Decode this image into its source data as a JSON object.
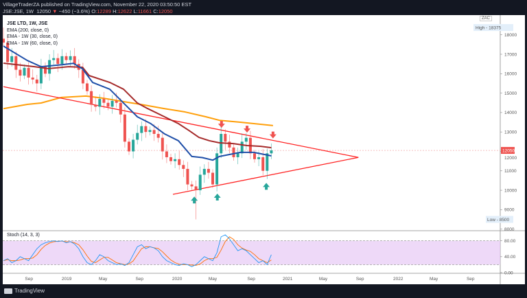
{
  "header": {
    "published": "VillageTraderZA published on TradingView.com, November 22, 2020 03:50:50 EST",
    "symbol": "JSE:JSE, 1W",
    "last": "12050",
    "change": "−450 (−3.6%)",
    "o_label": "O:",
    "o": "12289",
    "h_label": "H:",
    "h": "12622",
    "l_label": "L:",
    "l": "11661",
    "c_label": "C:",
    "c": "12050"
  },
  "legend": {
    "title": "JSE LTD, 1W, JSE",
    "ema200": "EMA (200, close, 0)",
    "ema30": "EMA - 1W (30, close, 0)",
    "ema60": "EMA - 1W (60, close, 0)",
    "stoch": "Stoch (14, 3, 3)"
  },
  "currency": "ZAC",
  "footer": {
    "brand": "TradingView"
  },
  "colors": {
    "up": "#26a69a",
    "down": "#ef5350",
    "ema30": "#1e4ea8",
    "ema60": "#a52a2a",
    "ema200": "#ff9f0a",
    "trend": "#ff2020",
    "stochK": "#2196f3",
    "stochD": "#ff6d00",
    "band": "#e7c9f5"
  },
  "chart_data": {
    "type": "candlestick",
    "interval": "2 weeks per point (index)",
    "ylim": [
      8000,
      18400
    ],
    "y_ticks": [
      8000,
      9000,
      10000,
      11000,
      12000,
      13000,
      14000,
      15000,
      16000,
      17000,
      18000
    ],
    "high_label": "High - 18375",
    "low_label": "Low - 8500",
    "last_price": 12050,
    "last_price_label": "12050",
    "closes": [
      17600,
      16600,
      16900,
      16200,
      15900,
      16300,
      15800,
      15700,
      15500,
      16400,
      16000,
      16700,
      16800,
      16500,
      16900,
      16700,
      16900,
      16500,
      16200,
      15500,
      15100,
      14400,
      14300,
      14700,
      14500,
      14300,
      14600,
      14500,
      13900,
      12500,
      12000,
      12600,
      12950,
      13300,
      13000,
      13100,
      12900,
      12700,
      12000,
      11700,
      11500,
      11600,
      11300,
      11100,
      10300,
      10200,
      10000,
      10800,
      11100,
      10900,
      10300,
      11900,
      12900,
      12500,
      12200,
      11700,
      11900,
      12500,
      12700,
      11900,
      11600,
      11700,
      11000,
      11900,
      12050
    ],
    "ema30": [
      [
        0,
        17420
      ],
      [
        5.7,
        16680
      ],
      [
        9,
        16360
      ],
      [
        14,
        16460
      ],
      [
        16.7,
        16530
      ],
      [
        18.9,
        16250
      ],
      [
        21.3,
        15550
      ],
      [
        25.4,
        15200
      ],
      [
        28.7,
        14490
      ],
      [
        32,
        13780
      ],
      [
        35.2,
        13430
      ],
      [
        38.5,
        12900
      ],
      [
        41.8,
        12550
      ],
      [
        45,
        11740
      ],
      [
        47.5,
        11680
      ],
      [
        50,
        11550
      ],
      [
        51.6,
        11740
      ],
      [
        54,
        11840
      ],
      [
        56.6,
        11950
      ],
      [
        59.8,
        11950
      ],
      [
        64,
        11770
      ]
    ],
    "ema60": [
      [
        0,
        16540
      ],
      [
        7.4,
        16360
      ],
      [
        10.7,
        16260
      ],
      [
        15.6,
        16360
      ],
      [
        18.9,
        16330
      ],
      [
        20.5,
        15900
      ],
      [
        25.4,
        15550
      ],
      [
        28.7,
        15200
      ],
      [
        32,
        14490
      ],
      [
        34.4,
        14210
      ],
      [
        38.5,
        13780
      ],
      [
        41.8,
        13430
      ],
      [
        44.3,
        13080
      ],
      [
        46.7,
        12720
      ],
      [
        49.2,
        12550
      ],
      [
        51.6,
        12440
      ],
      [
        54.9,
        12400
      ],
      [
        58.2,
        12300
      ],
      [
        61.5,
        12260
      ],
      [
        64,
        12190
      ]
    ],
    "ema200": [
      [
        0,
        14200
      ],
      [
        5.7,
        14420
      ],
      [
        9,
        14490
      ],
      [
        13.9,
        14780
      ],
      [
        19.7,
        14850
      ],
      [
        23.8,
        14740
      ],
      [
        28.7,
        14560
      ],
      [
        33.6,
        14390
      ],
      [
        38.5,
        14200
      ],
      [
        43.4,
        14030
      ],
      [
        48.4,
        13780
      ],
      [
        51.6,
        13600
      ],
      [
        56.6,
        13500
      ],
      [
        64.4,
        13330
      ]
    ],
    "trendlines": [
      [
        [
          0,
          15330
        ],
        [
          84.8,
          11690
        ]
      ],
      [
        [
          40.5,
          9790
        ],
        [
          84.8,
          11690
        ]
      ]
    ],
    "sell_arrows": [
      [
        52.1,
        13250
      ],
      [
        58.2,
        13000
      ],
      [
        64.4,
        12700
      ]
    ],
    "buy_arrows": [
      [
        45.6,
        9500
      ],
      [
        51.1,
        9650
      ],
      [
        62.8,
        10200
      ]
    ],
    "x_labels": [
      [
        "Sep",
        6.1
      ],
      [
        "2019",
        15.1
      ],
      [
        "May",
        23.8
      ],
      [
        "Sep",
        32.5
      ],
      [
        "2020",
        41.5
      ],
      [
        "May",
        50
      ],
      [
        "Sep",
        59.2
      ],
      [
        "2021",
        67.9
      ],
      [
        "May",
        76.4
      ],
      [
        "Sep",
        85.2
      ],
      [
        "2022",
        94.3
      ],
      [
        "May",
        102.8
      ],
      [
        "Sep",
        111.6
      ]
    ],
    "stoch": {
      "k": [
        30,
        35,
        25,
        30,
        40,
        35,
        30,
        45,
        60,
        70,
        75,
        78,
        80,
        78,
        80,
        75,
        78,
        72,
        60,
        40,
        25,
        20,
        30,
        45,
        40,
        30,
        25,
        20,
        22,
        18,
        25,
        45,
        65,
        70,
        60,
        65,
        62,
        55,
        40,
        30,
        25,
        20,
        18,
        22,
        20,
        15,
        20,
        30,
        40,
        35,
        30,
        50,
        90,
        95,
        85,
        70,
        55,
        60,
        55,
        45,
        35,
        25,
        30,
        20,
        45
      ],
      "upper": 80,
      "lower": 20,
      "ticks": [
        "80.00",
        "40.00",
        "0.00"
      ]
    }
  }
}
